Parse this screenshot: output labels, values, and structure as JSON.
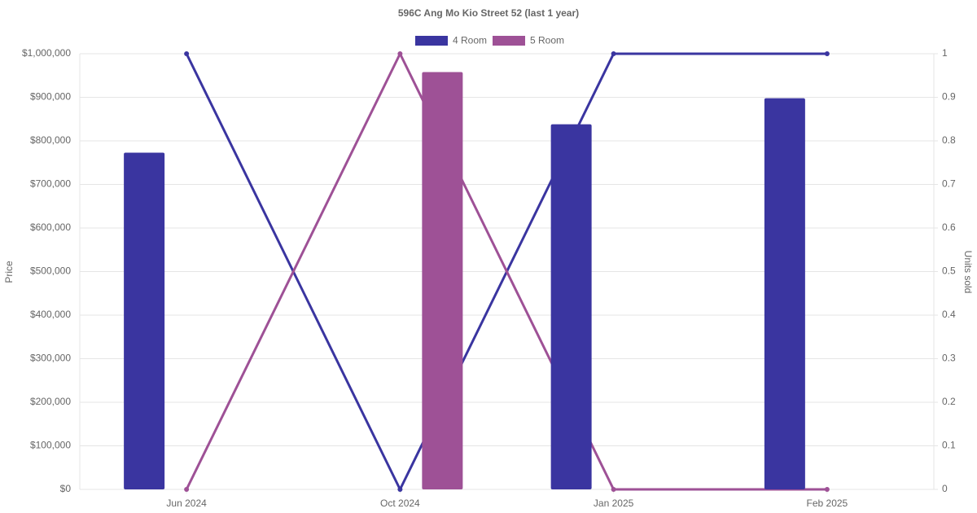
{
  "chart_data": {
    "type": "bar_line",
    "title": "596C Ang Mo Kio Street 52 (last 1 year)",
    "y_label": "Price",
    "y2_label": "Units sold",
    "categories": [
      "Jun 2024",
      "Oct 2024",
      "Jan 2025",
      "Feb 2025"
    ],
    "series": [
      {
        "name": "4 Room",
        "color": "#3a35a0",
        "values": [
          773000,
          null,
          838000,
          898000
        ],
        "y2_values": [
          1,
          0,
          1,
          1
        ]
      },
      {
        "name": "5 Room",
        "color": "#9e5196",
        "values": [
          null,
          958000,
          null,
          null
        ],
        "y2_values": [
          0,
          1,
          0,
          0
        ]
      }
    ],
    "ylim": [
      0,
      1000000
    ],
    "yticks": [
      {
        "value": 0,
        "label": "$0"
      },
      {
        "value": 100000,
        "label": "$100,000"
      },
      {
        "value": 200000,
        "label": "$200,000"
      },
      {
        "value": 300000,
        "label": "$300,000"
      },
      {
        "value": 400000,
        "label": "$400,000"
      },
      {
        "value": 500000,
        "label": "$500,000"
      },
      {
        "value": 600000,
        "label": "$600,000"
      },
      {
        "value": 700000,
        "label": "$700,000"
      },
      {
        "value": 800000,
        "label": "$800,000"
      },
      {
        "value": 900000,
        "label": "$900,000"
      },
      {
        "value": 1000000,
        "label": "$1,000,000"
      }
    ],
    "y2lim": [
      0,
      1
    ],
    "y2ticks": [
      0,
      0.1,
      0.2,
      0.3,
      0.4,
      0.5,
      0.6,
      0.7,
      0.8,
      0.9,
      1
    ],
    "grid": true,
    "legend": "top"
  }
}
